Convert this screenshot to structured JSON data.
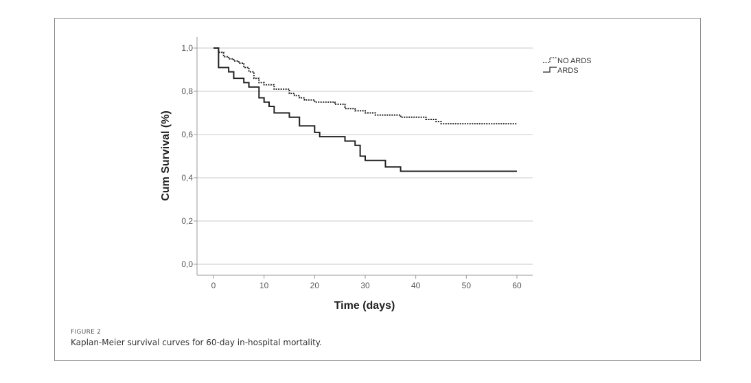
{
  "figure": {
    "label": "FIGURE 2",
    "caption": "Kaplan-Meier survival curves for 60-day in-hospital mortality."
  },
  "chart_data": {
    "type": "line",
    "step": true,
    "xlabel": "Time (days)",
    "ylabel": "Cum Survival (%)",
    "xlim": [
      -3,
      63
    ],
    "ylim": [
      -0.05,
      1.05
    ],
    "xticks": [
      0,
      10,
      20,
      30,
      40,
      50,
      60
    ],
    "yticks": [
      0.0,
      0.2,
      0.4,
      0.6,
      0.8,
      1.0
    ],
    "xtick_labels": [
      "0",
      "10",
      "20",
      "30",
      "40",
      "50",
      "60"
    ],
    "ytick_labels": [
      "0,0",
      "0,2",
      "0,4",
      "0,6",
      "0,8",
      "1,0"
    ],
    "grid": "horizontal",
    "legend_position": "top-right",
    "series": [
      {
        "name": "NO ARDS",
        "style": "dotted",
        "color": "#222222",
        "x": [
          0,
          1,
          2,
          3,
          4,
          5,
          6,
          7,
          8,
          9,
          10,
          12,
          15,
          16,
          17,
          18,
          20,
          24,
          26,
          28,
          30,
          32,
          37,
          42,
          44,
          45,
          60
        ],
        "y": [
          1.0,
          0.98,
          0.96,
          0.95,
          0.94,
          0.93,
          0.91,
          0.89,
          0.86,
          0.84,
          0.83,
          0.81,
          0.79,
          0.78,
          0.77,
          0.76,
          0.75,
          0.74,
          0.72,
          0.71,
          0.7,
          0.69,
          0.68,
          0.67,
          0.66,
          0.65,
          0.65
        ]
      },
      {
        "name": "ARDS",
        "style": "solid",
        "color": "#222222",
        "x": [
          0,
          1,
          3,
          4,
          6,
          7,
          9,
          10,
          11,
          12,
          15,
          17,
          20,
          21,
          23,
          26,
          28,
          29,
          30,
          34,
          37,
          60
        ],
        "y": [
          1.0,
          0.91,
          0.89,
          0.86,
          0.84,
          0.82,
          0.77,
          0.75,
          0.73,
          0.7,
          0.68,
          0.64,
          0.61,
          0.59,
          0.59,
          0.57,
          0.55,
          0.5,
          0.48,
          0.45,
          0.43,
          0.43
        ]
      }
    ]
  }
}
